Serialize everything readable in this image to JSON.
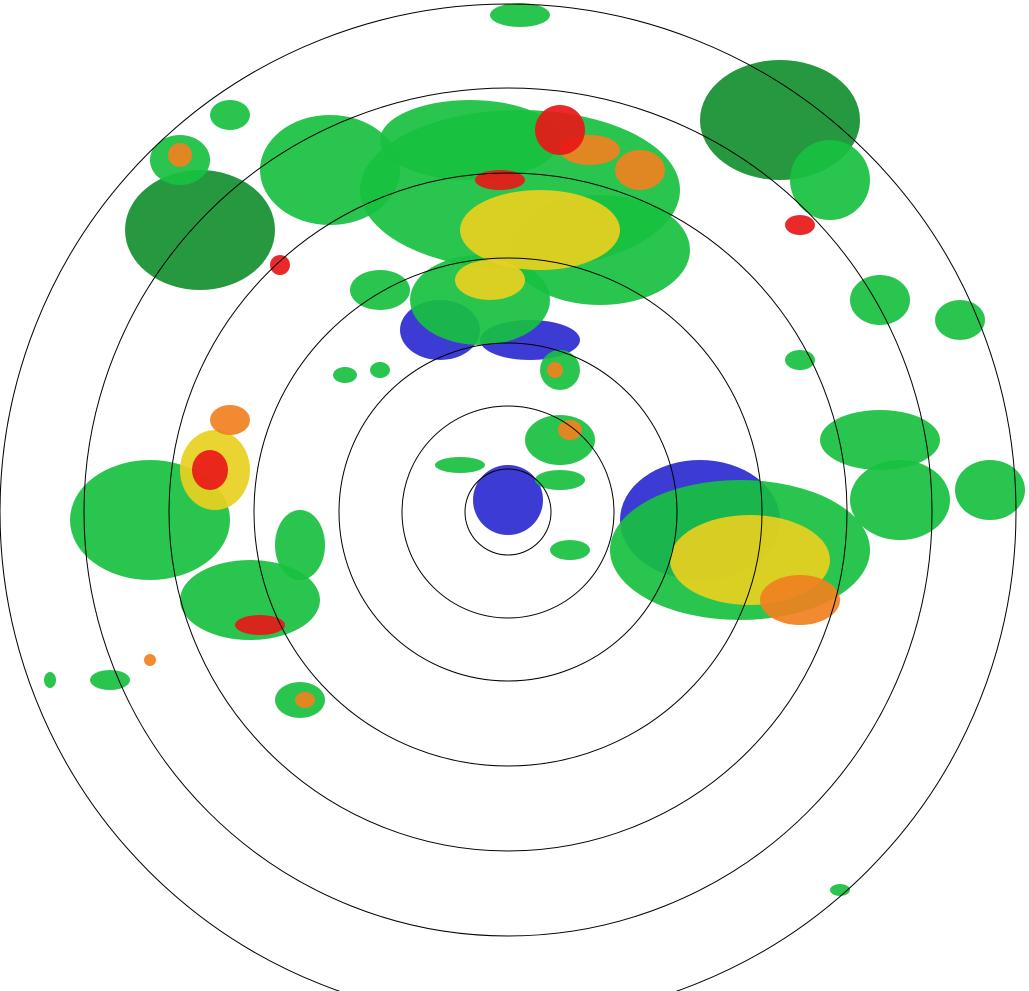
{
  "radar": {
    "range_ring_count": 7,
    "colors": {
      "weak": "#1a1acc",
      "light": "#19c8a0",
      "moderate": "#18c040",
      "moderate_dark": "#149030",
      "heavy": "#e8d020",
      "very_heavy": "#f08020",
      "intense": "#e81818",
      "ring": "#000000",
      "background": "#ffffff"
    }
  }
}
